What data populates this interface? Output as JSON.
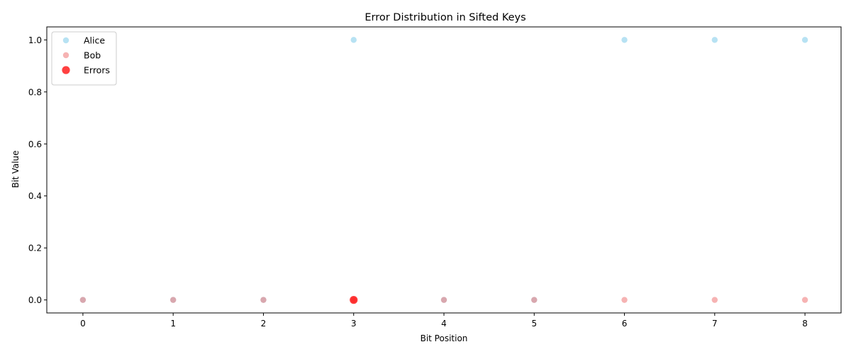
{
  "chart_data": {
    "type": "scatter",
    "title": "Error Distribution in Sifted Keys",
    "xlabel": "Bit Position",
    "ylabel": "Bit Value",
    "xlim": [
      -0.4,
      8.4
    ],
    "ylim": [
      -0.05,
      1.05
    ],
    "xticks": [
      0,
      1,
      2,
      3,
      4,
      5,
      6,
      7,
      8
    ],
    "xtick_labels": [
      "0",
      "1",
      "2",
      "3",
      "4",
      "5",
      "6",
      "7",
      "8"
    ],
    "yticks": [
      0.0,
      0.2,
      0.4,
      0.6,
      0.8,
      1.0
    ],
    "ytick_labels": [
      "0.0",
      "0.2",
      "0.4",
      "0.6",
      "0.8",
      "1.0"
    ],
    "grid": false,
    "legend_position": "top-left",
    "series": [
      {
        "name": "Alice",
        "color": "#87ceeb",
        "opacity": 0.6,
        "marker_size": "small",
        "x": [
          0,
          1,
          2,
          3,
          4,
          5,
          6,
          7,
          8
        ],
        "y": [
          0,
          0,
          0,
          1,
          0,
          0,
          1,
          1,
          1
        ]
      },
      {
        "name": "Bob",
        "color": "#f08080",
        "opacity": 0.6,
        "marker_size": "small",
        "x": [
          0,
          1,
          2,
          3,
          4,
          5,
          6,
          7,
          8
        ],
        "y": [
          0,
          0,
          0,
          0,
          0,
          0,
          0,
          0,
          0
        ]
      },
      {
        "name": "Errors",
        "color": "#ff0000",
        "opacity": 0.75,
        "marker_size": "large",
        "x": [
          3
        ],
        "y": [
          0
        ]
      }
    ]
  }
}
